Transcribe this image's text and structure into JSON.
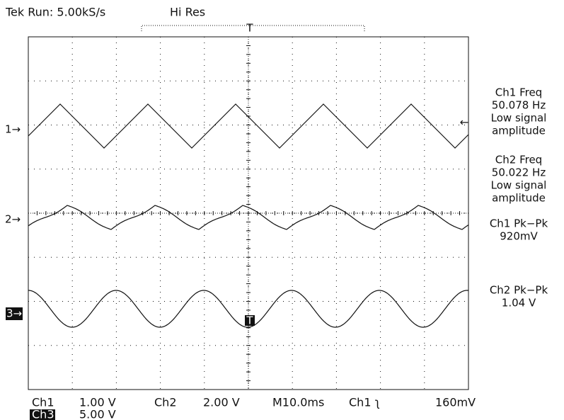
{
  "header": {
    "status": "Tek Run: 5.00kS/s",
    "mode": "Hi Res",
    "trigger": "T"
  },
  "markers": {
    "ch1": "1→",
    "ch2": "2→",
    "ch3": "3→",
    "trigger_level": "←"
  },
  "measurements": [
    {
      "label": "Ch1 Freq",
      "value": "50.078 Hz",
      "note1": "Low signal",
      "note2": "amplitude"
    },
    {
      "label": "Ch2 Freq",
      "value": "50.022 Hz",
      "note1": "Low signal",
      "note2": "amplitude"
    },
    {
      "label": "Ch1 Pk−Pk",
      "value": "920mV"
    },
    {
      "label": "Ch2 Pk−Pk",
      "value": "1.04 V"
    }
  ],
  "readout": {
    "ch1": "Ch1",
    "ch1_scale": "1.00 V",
    "ch2": "Ch2",
    "ch2_scale": "2.00 V",
    "timebase": "M10.0ms",
    "trigger_source": "Ch1 ʅ",
    "trigger_level": "160mV",
    "ch3": "Ch3",
    "ch3_scale": "5.00 V"
  }
}
